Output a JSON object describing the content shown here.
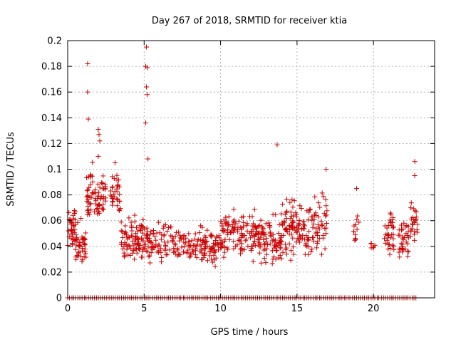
{
  "chart_data": {
    "type": "scatter",
    "title": "Day 267 of 2018, SRMTID for receiver ktia",
    "xlabel": "GPS time / hours",
    "ylabel": "SRMTID / TECUs",
    "xlim": [
      0,
      24
    ],
    "ylim": [
      0,
      0.2
    ],
    "x_ticks": [
      0,
      5,
      10,
      15,
      20
    ],
    "y_ticks": [
      0,
      0.02,
      0.04,
      0.06,
      0.08,
      0.1,
      0.12,
      0.14,
      0.16,
      0.18,
      0.2
    ],
    "x_tick_labels": [
      "0",
      "5",
      "10",
      "15",
      "20"
    ],
    "y_tick_labels": [
      "0",
      "0.02",
      "0.04",
      "0.06",
      "0.08",
      "0.1",
      "0.12",
      "0.14",
      "0.16",
      "0.18",
      "0.2"
    ],
    "grid": true,
    "marker": "plus",
    "color": "#cc0000",
    "series": [
      {
        "name": "SRMTID",
        "notable_points": [
          {
            "x": 1.3,
            "y": 0.182
          },
          {
            "x": 1.3,
            "y": 0.16
          },
          {
            "x": 1.35,
            "y": 0.139
          },
          {
            "x": 2.0,
            "y": 0.131
          },
          {
            "x": 2.05,
            "y": 0.127
          },
          {
            "x": 2.1,
            "y": 0.122
          },
          {
            "x": 5.15,
            "y": 0.195
          },
          {
            "x": 5.1,
            "y": 0.18
          },
          {
            "x": 5.2,
            "y": 0.179
          },
          {
            "x": 5.15,
            "y": 0.164
          },
          {
            "x": 5.2,
            "y": 0.158
          },
          {
            "x": 5.1,
            "y": 0.136
          },
          {
            "x": 5.25,
            "y": 0.108
          },
          {
            "x": 13.7,
            "y": 0.119
          },
          {
            "x": 22.7,
            "y": 0.106
          },
          {
            "x": 22.7,
            "y": 0.095
          },
          {
            "x": 16.9,
            "y": 0.1
          },
          {
            "x": 18.9,
            "y": 0.085
          },
          {
            "x": 3.1,
            "y": 0.105
          },
          {
            "x": 2.0,
            "y": 0.11
          }
        ],
        "clusters": [
          {
            "x_range": [
              0,
              0.5
            ],
            "y_range": [
              0.03,
              0.08
            ],
            "count": 35
          },
          {
            "x_range": [
              0.5,
              1.2
            ],
            "y_range": [
              0.015,
              0.065
            ],
            "count": 45
          },
          {
            "x_range": [
              1.2,
              2.0
            ],
            "y_range": [
              0.05,
              0.11
            ],
            "count": 45
          },
          {
            "x_range": [
              2.0,
              2.5
            ],
            "y_range": [
              0.06,
              0.1
            ],
            "count": 30
          },
          {
            "x_range": [
              2.8,
              3.5
            ],
            "y_range": [
              0.06,
              0.1
            ],
            "count": 35
          },
          {
            "x_range": [
              3.5,
              4.5
            ],
            "y_range": [
              0.02,
              0.075
            ],
            "count": 55
          },
          {
            "x_range": [
              4.5,
              5.5
            ],
            "y_range": [
              0.02,
              0.07
            ],
            "count": 60
          },
          {
            "x_range": [
              5.5,
              7.5
            ],
            "y_range": [
              0.02,
              0.065
            ],
            "count": 70
          },
          {
            "x_range": [
              7.5,
              10.0
            ],
            "y_range": [
              0.02,
              0.06
            ],
            "count": 110
          },
          {
            "x_range": [
              10.0,
              12.5
            ],
            "y_range": [
              0.025,
              0.075
            ],
            "count": 130
          },
          {
            "x_range": [
              12.5,
              14.0
            ],
            "y_range": [
              0.02,
              0.07
            ],
            "count": 80
          },
          {
            "x_range": [
              14.0,
              16.0
            ],
            "y_range": [
              0.02,
              0.085
            ],
            "count": 110
          },
          {
            "x_range": [
              16.0,
              17.0
            ],
            "y_range": [
              0.03,
              0.09
            ],
            "count": 45
          },
          {
            "x_range": [
              18.7,
              19.2
            ],
            "y_range": [
              0.035,
              0.07
            ],
            "count": 12
          },
          {
            "x_range": [
              19.8,
              20.1
            ],
            "y_range": [
              0.035,
              0.05
            ],
            "count": 6
          },
          {
            "x_range": [
              20.7,
              21.4
            ],
            "y_range": [
              0.025,
              0.08
            ],
            "count": 35
          },
          {
            "x_range": [
              21.6,
              22.3
            ],
            "y_range": [
              0.02,
              0.07
            ],
            "count": 35
          },
          {
            "x_range": [
              22.4,
              22.9
            ],
            "y_range": [
              0.04,
              0.08
            ],
            "count": 25
          }
        ],
        "zero_baseline": {
          "y": 0,
          "x_range": [
            0,
            22.8
          ],
          "count": 170
        }
      }
    ]
  }
}
